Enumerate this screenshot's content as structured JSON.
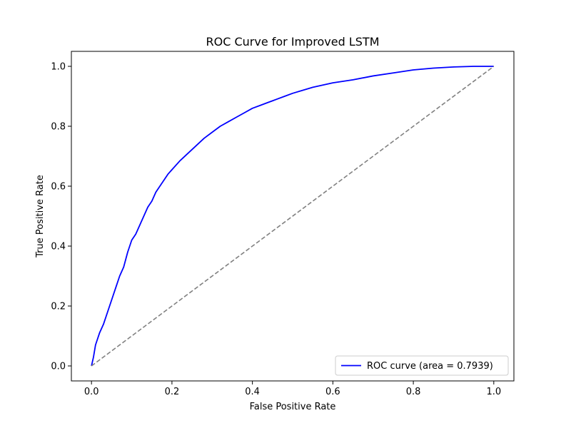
{
  "chart_data": {
    "type": "line",
    "title": "ROC Curve for Improved LSTM",
    "xlabel": "False Positive Rate",
    "ylabel": "True Positive Rate",
    "xlim": [
      -0.05,
      1.05
    ],
    "ylim": [
      -0.05,
      1.05
    ],
    "xticks": [
      0.0,
      0.2,
      0.4,
      0.6,
      0.8,
      1.0
    ],
    "yticks": [
      0.0,
      0.2,
      0.4,
      0.6,
      0.8,
      1.0
    ],
    "xtick_labels": [
      "0.0",
      "0.2",
      "0.4",
      "0.6",
      "0.8",
      "1.0"
    ],
    "ytick_labels": [
      "0.0",
      "0.2",
      "0.4",
      "0.6",
      "0.8",
      "1.0"
    ],
    "grid": false,
    "legend_position": "lower-right",
    "series": [
      {
        "name": "ROC curve (area = 0.7939)",
        "color": "#0000ff",
        "style": "solid",
        "x": [
          0.0,
          0.005,
          0.01,
          0.02,
          0.03,
          0.04,
          0.05,
          0.06,
          0.07,
          0.08,
          0.09,
          0.1,
          0.11,
          0.12,
          0.13,
          0.14,
          0.15,
          0.16,
          0.17,
          0.18,
          0.19,
          0.2,
          0.22,
          0.24,
          0.26,
          0.28,
          0.3,
          0.32,
          0.34,
          0.36,
          0.38,
          0.4,
          0.42,
          0.44,
          0.46,
          0.48,
          0.5,
          0.55,
          0.6,
          0.65,
          0.7,
          0.75,
          0.8,
          0.85,
          0.9,
          0.95,
          1.0
        ],
        "y": [
          0.0,
          0.03,
          0.07,
          0.11,
          0.14,
          0.18,
          0.22,
          0.26,
          0.3,
          0.33,
          0.38,
          0.42,
          0.44,
          0.47,
          0.5,
          0.53,
          0.55,
          0.58,
          0.6,
          0.62,
          0.64,
          0.655,
          0.685,
          0.71,
          0.735,
          0.76,
          0.78,
          0.8,
          0.815,
          0.83,
          0.845,
          0.86,
          0.87,
          0.88,
          0.89,
          0.9,
          0.91,
          0.93,
          0.945,
          0.955,
          0.968,
          0.978,
          0.988,
          0.994,
          0.998,
          1.0,
          1.0
        ]
      },
      {
        "color": "#808080",
        "style": "dashed",
        "x": [
          0.0,
          1.0
        ],
        "y": [
          0.0,
          1.0
        ]
      }
    ]
  }
}
